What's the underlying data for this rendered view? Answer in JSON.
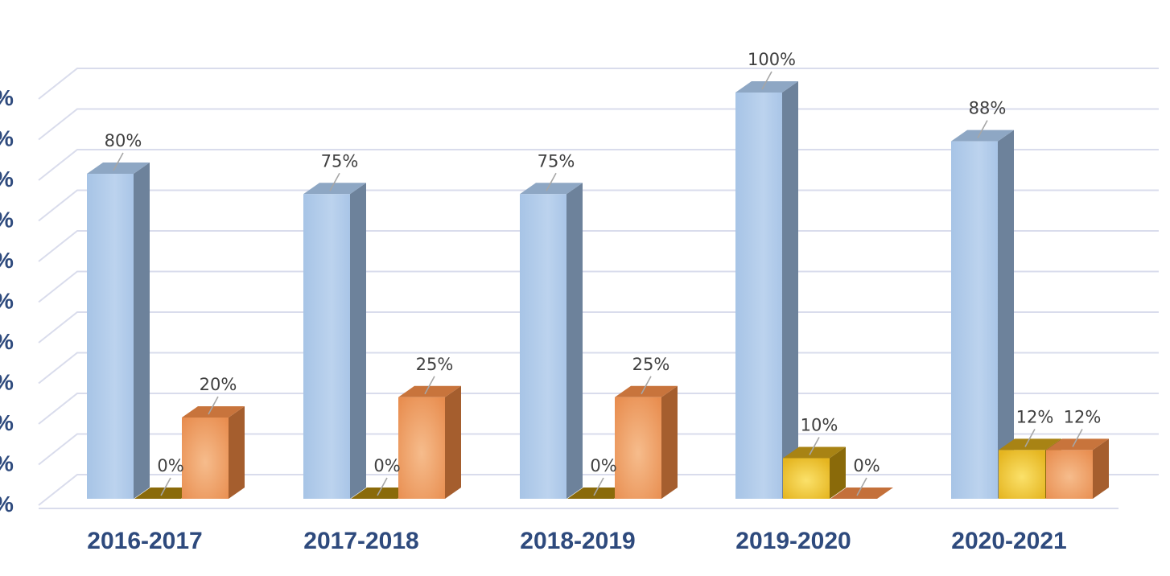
{
  "chart_data": {
    "type": "bar",
    "style": "3d-clustered-column",
    "title": "",
    "xlabel": "",
    "ylabel": "",
    "categories": [
      "2016-2017",
      "2017-2018",
      "2018-2019",
      "2019-2020",
      "2020-2021"
    ],
    "series": [
      {
        "color": "#a9c6e8",
        "values": [
          80,
          75,
          75,
          100,
          88
        ]
      },
      {
        "color": "#f2c230",
        "values": [
          0,
          0,
          0,
          10,
          12
        ]
      },
      {
        "color": "#ec9a5e",
        "values": [
          20,
          25,
          25,
          0,
          12
        ]
      }
    ],
    "data_labels": [
      [
        "80%",
        "75%",
        "75%",
        "100%",
        "88%"
      ],
      [
        "0%",
        "0%",
        "0%",
        "10%",
        "12%"
      ],
      [
        "20%",
        "25%",
        "25%",
        "0%",
        "12%"
      ]
    ],
    "y_tick_labels": [
      "%",
      "%",
      "%",
      "%",
      "%",
      "%",
      "%",
      "%",
      "%",
      "%",
      "%"
    ],
    "ylim": [
      0,
      100
    ],
    "grid": true,
    "legend": "none"
  }
}
